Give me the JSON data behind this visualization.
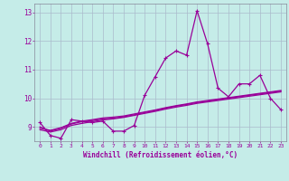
{
  "xlabel": "Windchill (Refroidissement éolien,°C)",
  "bg_color": "#c5ece8",
  "grid_color": "#aabbcc",
  "line_color": "#990099",
  "x": [
    0,
    1,
    2,
    3,
    4,
    5,
    6,
    7,
    8,
    9,
    10,
    11,
    12,
    13,
    14,
    15,
    16,
    17,
    18,
    19,
    20,
    21,
    22,
    23
  ],
  "y_main": [
    9.15,
    8.7,
    8.6,
    9.25,
    9.2,
    9.15,
    9.2,
    8.85,
    8.85,
    9.05,
    10.1,
    10.75,
    11.4,
    11.65,
    11.5,
    13.05,
    11.9,
    10.35,
    10.05,
    10.5,
    10.5,
    10.8,
    10.0,
    9.6
  ],
  "y_reg1": [
    9.0,
    8.85,
    8.95,
    9.1,
    9.18,
    9.22,
    9.28,
    9.3,
    9.35,
    9.42,
    9.5,
    9.57,
    9.65,
    9.72,
    9.78,
    9.85,
    9.9,
    9.95,
    10.0,
    10.05,
    10.1,
    10.15,
    10.2,
    10.25
  ],
  "y_reg2": [
    8.9,
    8.82,
    8.9,
    9.05,
    9.12,
    9.18,
    9.24,
    9.28,
    9.33,
    9.4,
    9.47,
    9.54,
    9.62,
    9.69,
    9.75,
    9.82,
    9.87,
    9.92,
    9.97,
    10.02,
    10.07,
    10.12,
    10.17,
    10.22
  ],
  "y_reg3": [
    8.95,
    8.88,
    8.97,
    9.12,
    9.2,
    9.25,
    9.31,
    9.34,
    9.38,
    9.45,
    9.52,
    9.59,
    9.67,
    9.74,
    9.8,
    9.87,
    9.92,
    9.97,
    10.02,
    10.07,
    10.12,
    10.17,
    10.22,
    10.27
  ],
  "ylim": [
    8.5,
    13.3
  ],
  "yticks": [
    9,
    10,
    11,
    12,
    13
  ],
  "xticks": [
    0,
    1,
    2,
    3,
    4,
    5,
    6,
    7,
    8,
    9,
    10,
    11,
    12,
    13,
    14,
    15,
    16,
    17,
    18,
    19,
    20,
    21,
    22,
    23
  ]
}
